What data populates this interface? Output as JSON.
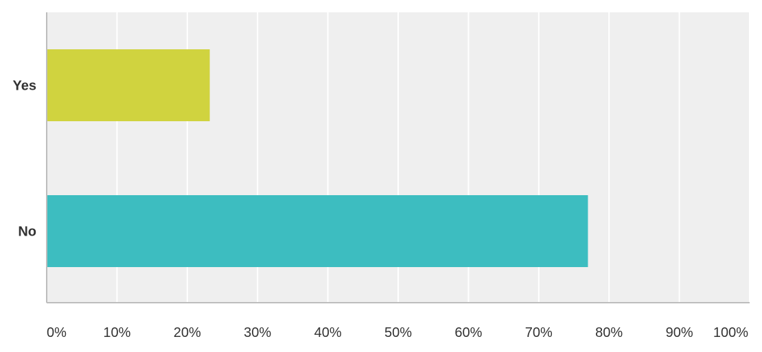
{
  "chart_data": {
    "type": "bar",
    "orientation": "horizontal",
    "categories": [
      "Yes",
      "No"
    ],
    "values": [
      23.1,
      76.9
    ],
    "colors": [
      "#d0d33f",
      "#3dbdc0"
    ],
    "x_ticks": [
      "0%",
      "10%",
      "20%",
      "30%",
      "40%",
      "50%",
      "60%",
      "70%",
      "80%",
      "90%",
      "100%"
    ],
    "xlim": [
      0,
      100
    ],
    "grid": true,
    "legend": "none",
    "title": "",
    "xlabel": "",
    "ylabel": "",
    "plot_background": "#efefef",
    "gridline_color": "#ffffff"
  }
}
